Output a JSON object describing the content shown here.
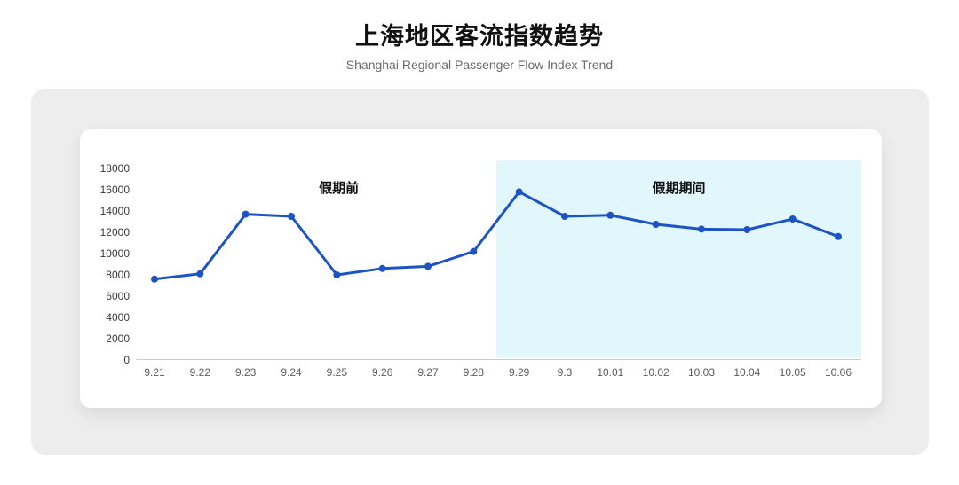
{
  "header": {
    "title": "上海地区客流指数趋势",
    "subtitle": "Shanghai Regional Passenger Flow Index Trend"
  },
  "chart_data": {
    "type": "line",
    "title": "上海地区客流指数趋势",
    "subtitle": "Shanghai Regional Passenger Flow Index Trend",
    "categories": [
      "9.21",
      "9.22",
      "9.23",
      "9.24",
      "9.25",
      "9.26",
      "9.27",
      "9.28",
      "9.29",
      "9.3",
      "10.01",
      "10.02",
      "10.03",
      "10.04",
      "10.05",
      "10.06"
    ],
    "values": [
      7600,
      8100,
      13700,
      13500,
      8000,
      8600,
      8800,
      10200,
      15800,
      13500,
      13600,
      12750,
      12300,
      12250,
      13250,
      11600
    ],
    "xlabel": "",
    "ylabel": "",
    "ylim": [
      0,
      18000
    ],
    "y_ticks": [
      0,
      2000,
      4000,
      6000,
      8000,
      10000,
      12000,
      14000,
      16000,
      18000
    ],
    "grid": false,
    "legend": "none",
    "line_color": "#1d53c5",
    "axis_line_color": "#cccccc",
    "annotations": {
      "regions": [
        {
          "id": "pre-holiday",
          "label": "假期前",
          "start_index": 0,
          "end_index": 8,
          "background": "none"
        },
        {
          "id": "holiday",
          "label": "假期期间",
          "start_index": 8,
          "end_index": 15,
          "background": "#e2f7fc"
        }
      ]
    }
  }
}
